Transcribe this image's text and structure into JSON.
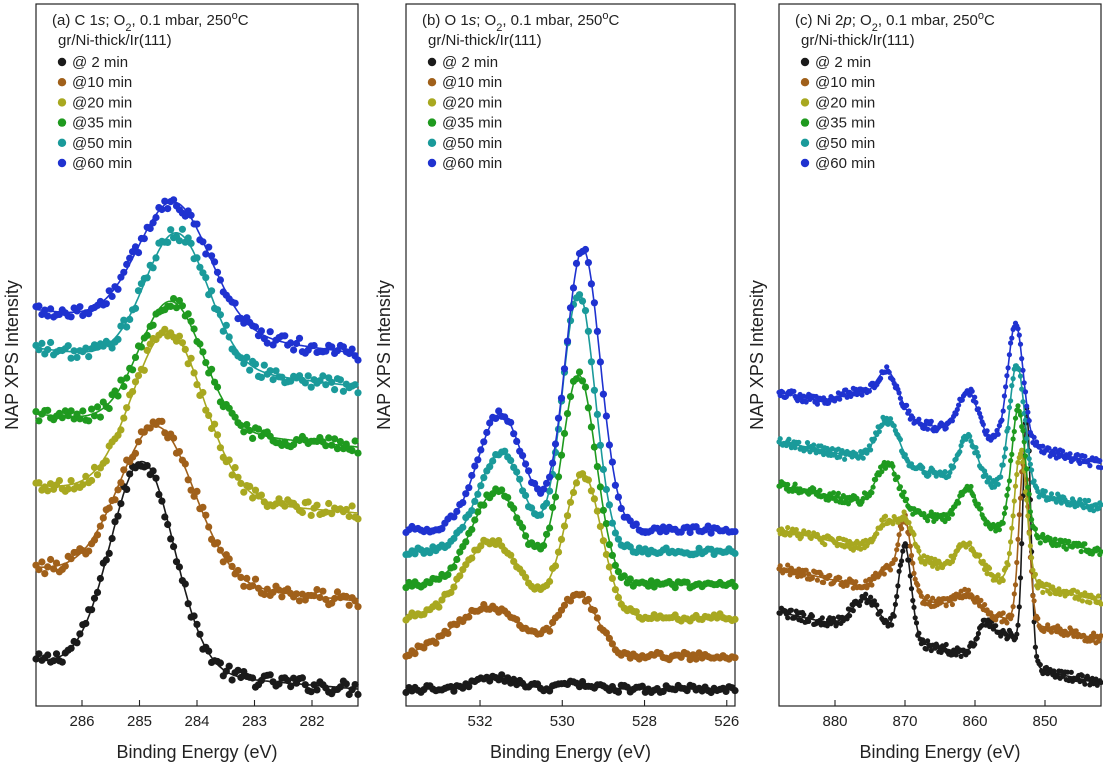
{
  "figure": {
    "ylabel": "NAP XPS Intensity",
    "legend_labels": [
      "@ 2 min",
      "@10 min",
      "@20 min",
      "@35 min",
      "@50 min",
      "@60 min"
    ],
    "series_colors": [
      "#1a1a1a",
      "#a0601a",
      "#a8a820",
      "#1f9a1f",
      "#1a9a9a",
      "#1f32d0"
    ]
  },
  "chart_data": [
    {
      "type": "line",
      "panel": "(a)",
      "title_parts": [
        "(a) C 1",
        "s",
        "; O",
        "2",
        ", 0.1 mbar, 250",
        "o",
        "C"
      ],
      "subtitle": "gr/Ni-thick/Ir(111)",
      "xlabel": "Binding Energy (eV)",
      "ylabel": "NAP XPS Intensity",
      "xlim": [
        286.8,
        281.2
      ],
      "ylim": [
        0,
        1
      ],
      "xticks": [
        286,
        285,
        284,
        283,
        282
      ],
      "series": [
        {
          "name": "@ 2 min",
          "offset": 0.02,
          "bg_left": 0.05,
          "bg_right": 0.0,
          "noise": 0.012,
          "peaks": [
            {
              "e": 284.95,
              "a": 0.38,
              "w": 0.55
            }
          ]
        },
        {
          "name": "@10 min",
          "offset": 0.19,
          "bg_left": 0.05,
          "bg_right": -0.01,
          "noise": 0.012,
          "peaks": [
            {
              "e": 284.7,
              "a": 0.28,
              "w": 0.65
            }
          ]
        },
        {
          "name": "@20 min",
          "offset": 0.33,
          "bg_left": 0.06,
          "bg_right": 0.01,
          "noise": 0.012,
          "peaks": [
            {
              "e": 284.5,
              "a": 0.3,
              "w": 0.62
            }
          ]
        },
        {
          "name": "@35 min",
          "offset": 0.46,
          "bg_left": 0.06,
          "bg_right": 0.0,
          "noise": 0.012,
          "peaks": [
            {
              "e": 284.45,
              "a": 0.23,
              "w": 0.55
            }
          ]
        },
        {
          "name": "@50 min",
          "offset": 0.56,
          "bg_left": 0.08,
          "bg_right": 0.01,
          "noise": 0.012,
          "peaks": [
            {
              "e": 284.35,
              "a": 0.24,
              "w": 0.55
            }
          ]
        },
        {
          "name": "@60 min",
          "offset": 0.63,
          "bg_left": 0.08,
          "bg_right": 0.0,
          "noise": 0.012,
          "peaks": [
            {
              "e": 284.4,
              "a": 0.23,
              "w": 0.62
            }
          ]
        }
      ]
    },
    {
      "type": "line",
      "panel": "(b)",
      "title_parts": [
        "(b) O 1",
        "s",
        "; O",
        "2",
        ", 0.1 mbar, 250",
        "o",
        "C"
      ],
      "subtitle": "gr/Ni-thick/Ir(111)",
      "xlabel": "Binding Energy (eV)",
      "ylabel": "",
      "xlim": [
        533.8,
        525.8
      ],
      "ylim": [
        0,
        1
      ],
      "xticks": [
        532,
        530,
        528,
        526
      ],
      "series": [
        {
          "name": "@ 2 min",
          "offset": 0.02,
          "bg_left": 0.0,
          "bg_right": 0.0,
          "noise": 0.006,
          "peaks": [
            {
              "e": 531.6,
              "a": 0.02,
              "w": 0.5
            },
            {
              "e": 529.6,
              "a": 0.01,
              "w": 0.4
            }
          ]
        },
        {
          "name": "@10 min",
          "offset": 0.08,
          "bg_left": 0.0,
          "bg_right": 0.0,
          "noise": 0.006,
          "peaks": [
            {
              "e": 531.8,
              "a": 0.09,
              "w": 0.85
            },
            {
              "e": 529.6,
              "a": 0.11,
              "w": 0.45
            }
          ]
        },
        {
          "name": "@20 min",
          "offset": 0.15,
          "bg_left": 0.0,
          "bg_right": 0.0,
          "noise": 0.006,
          "peaks": [
            {
              "e": 531.7,
              "a": 0.14,
              "w": 0.7
            },
            {
              "e": 529.5,
              "a": 0.26,
              "w": 0.45
            }
          ]
        },
        {
          "name": "@35 min",
          "offset": 0.21,
          "bg_left": 0.0,
          "bg_right": 0.0,
          "noise": 0.006,
          "peaks": [
            {
              "e": 531.6,
              "a": 0.17,
              "w": 0.6
            },
            {
              "e": 529.6,
              "a": 0.38,
              "w": 0.42
            }
          ]
        },
        {
          "name": "@50 min",
          "offset": 0.27,
          "bg_left": 0.0,
          "bg_right": 0.0,
          "noise": 0.006,
          "peaks": [
            {
              "e": 531.5,
              "a": 0.18,
              "w": 0.55
            },
            {
              "e": 529.6,
              "a": 0.47,
              "w": 0.4
            }
          ]
        },
        {
          "name": "@60 min",
          "offset": 0.31,
          "bg_left": 0.0,
          "bg_right": 0.0,
          "noise": 0.006,
          "peaks": [
            {
              "e": 531.5,
              "a": 0.21,
              "w": 0.55
            },
            {
              "e": 529.5,
              "a": 0.51,
              "w": 0.42
            }
          ]
        }
      ]
    },
    {
      "type": "line",
      "panel": "(c)",
      "title_parts": [
        "(c) Ni 2",
        "p",
        "; O",
        "2",
        ", 0.1 mbar, 250",
        "o",
        "C"
      ],
      "subtitle": "gr/Ni-thick/Ir(111)",
      "xlabel": "Binding Energy (eV)",
      "ylabel": "NAP XPS Intensity",
      "xlim": [
        888,
        842
      ],
      "ylim": [
        0,
        1
      ],
      "xticks": [
        880,
        870,
        860,
        850
      ],
      "series": [
        {
          "name": "@ 2 min",
          "offset": 0.03,
          "bg_left": 0.13,
          "bg_right": 0.0,
          "noise": 0.008,
          "peaks": [
            {
              "e": 870.0,
              "a": 0.17,
              "w": 0.9
            },
            {
              "e": 875.5,
              "a": 0.06,
              "w": 2.0
            },
            {
              "e": 858.5,
              "a": 0.06,
              "w": 1.2
            },
            {
              "e": 852.6,
              "a": 0.45,
              "w": 0.55
            },
            {
              "e": 855.0,
              "a": 0.05,
              "w": 1.8
            }
          ]
        },
        {
          "name": "@10 min",
          "offset": 0.11,
          "bg_left": 0.13,
          "bg_right": 0.0,
          "noise": 0.008,
          "peaks": [
            {
              "e": 870.0,
              "a": 0.13,
              "w": 0.9
            },
            {
              "e": 872.5,
              "a": 0.04,
              "w": 1.5
            },
            {
              "e": 861.0,
              "a": 0.03,
              "w": 1.5
            },
            {
              "e": 853.0,
              "a": 0.3,
              "w": 0.7
            }
          ]
        },
        {
          "name": "@20 min",
          "offset": 0.18,
          "bg_left": 0.13,
          "bg_right": 0.0,
          "noise": 0.008,
          "peaks": [
            {
              "e": 872.5,
              "a": 0.06,
              "w": 1.6
            },
            {
              "e": 869.8,
              "a": 0.06,
              "w": 1.0
            },
            {
              "e": 861.0,
              "a": 0.05,
              "w": 1.5
            },
            {
              "e": 853.5,
              "a": 0.24,
              "w": 0.9
            }
          ]
        },
        {
          "name": "@35 min",
          "offset": 0.27,
          "bg_left": 0.12,
          "bg_right": 0.0,
          "noise": 0.008,
          "peaks": [
            {
              "e": 872.5,
              "a": 0.08,
              "w": 1.6
            },
            {
              "e": 861.0,
              "a": 0.07,
              "w": 1.3
            },
            {
              "e": 853.8,
              "a": 0.23,
              "w": 1.0
            }
          ]
        },
        {
          "name": "@50 min",
          "offset": 0.35,
          "bg_left": 0.12,
          "bg_right": 0.0,
          "noise": 0.008,
          "peaks": [
            {
              "e": 872.5,
              "a": 0.08,
              "w": 1.6
            },
            {
              "e": 861.0,
              "a": 0.08,
              "w": 1.3
            },
            {
              "e": 854.0,
              "a": 0.23,
              "w": 1.1
            }
          ]
        },
        {
          "name": "@60 min",
          "offset": 0.43,
          "bg_left": 0.13,
          "bg_right": 0.0,
          "noise": 0.008,
          "peaks": [
            {
              "e": 872.5,
              "a": 0.08,
              "w": 1.6
            },
            {
              "e": 877.0,
              "a": 0.03,
              "w": 2.0
            },
            {
              "e": 861.0,
              "a": 0.08,
              "w": 1.3
            },
            {
              "e": 854.2,
              "a": 0.22,
              "w": 1.1
            }
          ]
        }
      ]
    }
  ]
}
